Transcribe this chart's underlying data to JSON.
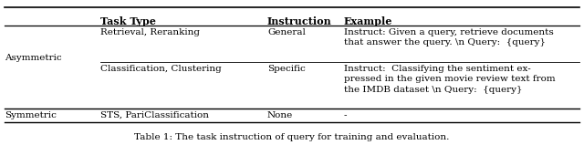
{
  "title": "Table 1: The task instruction of query for training and evaluation.",
  "headers": [
    "Task Type",
    "Instruction",
    "Example"
  ],
  "rows": [
    {
      "group": "Asymmetric",
      "task_type": "Retrieval, Reranking",
      "instruction": "General",
      "example": "Instruct: Given a query, retrieve documents\nthat answer the query. \\n Query:  {query}"
    },
    {
      "group": "Asymmetric",
      "task_type": "Classification, Clustering",
      "instruction": "Specific",
      "example": "Instruct:  Classifying the sentiment ex-\npressed in the given movie review text from\nthe IMDB dataset \\n Query:  {query}"
    },
    {
      "group": "Symmetric",
      "task_type": "STS, PariClassification",
      "instruction": "None",
      "example": "-"
    }
  ],
  "background_color": "#ffffff",
  "line_color": "#000000",
  "font_size": 7.5,
  "header_font_size": 8.0,
  "title_font_size": 7.5,
  "figsize": [
    6.4,
    1.59
  ],
  "dpi": 100
}
